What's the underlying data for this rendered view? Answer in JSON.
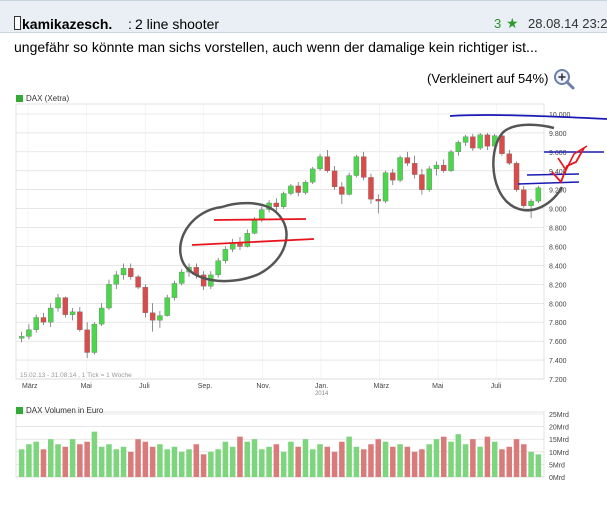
{
  "post": {
    "username": "kamikazesch.",
    "separator": ":",
    "title": "2 line shooter",
    "rating": "3",
    "timestamp": "28.08.14 23:2",
    "body": "ungefähr so könnte man sichs vorstellen, auch wenn der damalige kein richtiger ist...",
    "zoom_label": "(Verkleinert auf 54%)"
  },
  "colors": {
    "up": "#4cd64c",
    "down": "#d94c4c",
    "vol_up": "#7dd67d",
    "vol_down": "#d97b7b",
    "grid": "#d8d8d8",
    "annotation_black": "#555555",
    "annotation_red": "#e8141e",
    "annotation_blue": "#1a1ab4"
  },
  "icons": {
    "zoom": "magnifier-plus-icon",
    "star": "star-icon",
    "user": "user-icon"
  },
  "chart_data": [
    {
      "type": "candlestick",
      "legend": "DAX (Xetra)",
      "info_text": "15.02.13 - 31.08.14 , 1 Tick = 1 Woche",
      "x_tick_labels": [
        "März",
        "Mai",
        "Juli",
        "Sep.",
        "Nov.",
        "Jan.",
        "März",
        "Mai",
        "Juli"
      ],
      "x_tick_sub": [
        "",
        "",
        "",
        "",
        "",
        "2014",
        "",
        "",
        ""
      ],
      "y_tick_labels": [
        "10.000",
        "9.800",
        "9.600",
        "9.400",
        "9.200",
        "9.000",
        "8.800",
        "8.600",
        "8.400",
        "8.200",
        "8.000",
        "7.800",
        "7.600",
        "7.400",
        "7.200"
      ],
      "ylim": [
        7200,
        10000
      ],
      "candles": [
        {
          "o": 7630,
          "h": 7700,
          "l": 7590,
          "c": 7650
        },
        {
          "o": 7650,
          "h": 7780,
          "l": 7620,
          "c": 7720
        },
        {
          "o": 7720,
          "h": 7880,
          "l": 7690,
          "c": 7850
        },
        {
          "o": 7850,
          "h": 7900,
          "l": 7770,
          "c": 7800
        },
        {
          "o": 7800,
          "h": 8000,
          "l": 7750,
          "c": 7950
        },
        {
          "o": 7950,
          "h": 8100,
          "l": 7910,
          "c": 8060
        },
        {
          "o": 8060,
          "h": 8070,
          "l": 7850,
          "c": 7880
        },
        {
          "o": 7880,
          "h": 7950,
          "l": 7820,
          "c": 7910
        },
        {
          "o": 7910,
          "h": 7960,
          "l": 7700,
          "c": 7720
        },
        {
          "o": 7720,
          "h": 7800,
          "l": 7420,
          "c": 7480
        },
        {
          "o": 7480,
          "h": 7800,
          "l": 7460,
          "c": 7780
        },
        {
          "o": 7780,
          "h": 8000,
          "l": 7760,
          "c": 7950
        },
        {
          "o": 7950,
          "h": 8250,
          "l": 7930,
          "c": 8200
        },
        {
          "o": 8200,
          "h": 8340,
          "l": 8150,
          "c": 8300
        },
        {
          "o": 8300,
          "h": 8420,
          "l": 8250,
          "c": 8370
        },
        {
          "o": 8370,
          "h": 8420,
          "l": 8250,
          "c": 8280
        },
        {
          "o": 8280,
          "h": 8300,
          "l": 8150,
          "c": 8170
        },
        {
          "o": 8170,
          "h": 8200,
          "l": 7850,
          "c": 7900
        },
        {
          "o": 7900,
          "h": 8000,
          "l": 7700,
          "c": 7820
        },
        {
          "o": 7820,
          "h": 7920,
          "l": 7740,
          "c": 7870
        },
        {
          "o": 7870,
          "h": 8090,
          "l": 7860,
          "c": 8060
        },
        {
          "o": 8060,
          "h": 8240,
          "l": 8030,
          "c": 8210
        },
        {
          "o": 8210,
          "h": 8360,
          "l": 8190,
          "c": 8330
        },
        {
          "o": 8330,
          "h": 8420,
          "l": 8280,
          "c": 8380
        },
        {
          "o": 8380,
          "h": 8420,
          "l": 8260,
          "c": 8300
        },
        {
          "o": 8300,
          "h": 8340,
          "l": 8140,
          "c": 8180
        },
        {
          "o": 8180,
          "h": 8340,
          "l": 8150,
          "c": 8300
        },
        {
          "o": 8300,
          "h": 8480,
          "l": 8270,
          "c": 8450
        },
        {
          "o": 8450,
          "h": 8600,
          "l": 8420,
          "c": 8570
        },
        {
          "o": 8570,
          "h": 8680,
          "l": 8540,
          "c": 8640
        },
        {
          "o": 8640,
          "h": 8700,
          "l": 8560,
          "c": 8600
        },
        {
          "o": 8600,
          "h": 8780,
          "l": 8590,
          "c": 8740
        },
        {
          "o": 8740,
          "h": 8910,
          "l": 8730,
          "c": 8880
        },
        {
          "o": 8880,
          "h": 9020,
          "l": 8860,
          "c": 8990
        },
        {
          "o": 8990,
          "h": 9090,
          "l": 8960,
          "c": 9060
        },
        {
          "o": 9060,
          "h": 9110,
          "l": 8980,
          "c": 9020
        },
        {
          "o": 9020,
          "h": 9180,
          "l": 9000,
          "c": 9160
        },
        {
          "o": 9160,
          "h": 9260,
          "l": 9140,
          "c": 9240
        },
        {
          "o": 9240,
          "h": 9280,
          "l": 9130,
          "c": 9170
        },
        {
          "o": 9170,
          "h": 9300,
          "l": 9150,
          "c": 9280
        },
        {
          "o": 9280,
          "h": 9440,
          "l": 9260,
          "c": 9420
        },
        {
          "o": 9420,
          "h": 9580,
          "l": 9400,
          "c": 9550
        },
        {
          "o": 9550,
          "h": 9620,
          "l": 9380,
          "c": 9400
        },
        {
          "o": 9400,
          "h": 9450,
          "l": 9200,
          "c": 9230
        },
        {
          "o": 9230,
          "h": 9280,
          "l": 9050,
          "c": 9150
        },
        {
          "o": 9150,
          "h": 9380,
          "l": 9140,
          "c": 9350
        },
        {
          "o": 9350,
          "h": 9570,
          "l": 9330,
          "c": 9550
        },
        {
          "o": 9550,
          "h": 9600,
          "l": 9300,
          "c": 9330
        },
        {
          "o": 9330,
          "h": 9370,
          "l": 9050,
          "c": 9100
        },
        {
          "o": 9100,
          "h": 9150,
          "l": 8950,
          "c": 9080
        },
        {
          "o": 9080,
          "h": 9400,
          "l": 9060,
          "c": 9380
        },
        {
          "o": 9380,
          "h": 9420,
          "l": 9250,
          "c": 9300
        },
        {
          "o": 9300,
          "h": 9560,
          "l": 9280,
          "c": 9540
        },
        {
          "o": 9540,
          "h": 9600,
          "l": 9450,
          "c": 9480
        },
        {
          "o": 9480,
          "h": 9560,
          "l": 9320,
          "c": 9360
        },
        {
          "o": 9360,
          "h": 9420,
          "l": 9150,
          "c": 9200
        },
        {
          "o": 9200,
          "h": 9450,
          "l": 9180,
          "c": 9420
        },
        {
          "o": 9420,
          "h": 9500,
          "l": 9350,
          "c": 9460
        },
        {
          "o": 9460,
          "h": 9520,
          "l": 9380,
          "c": 9400
        },
        {
          "o": 9400,
          "h": 9620,
          "l": 9390,
          "c": 9600
        },
        {
          "o": 9600,
          "h": 9720,
          "l": 9560,
          "c": 9700
        },
        {
          "o": 9700,
          "h": 9780,
          "l": 9660,
          "c": 9760
        },
        {
          "o": 9760,
          "h": 9790,
          "l": 9610,
          "c": 9640
        },
        {
          "o": 9640,
          "h": 9800,
          "l": 9620,
          "c": 9780
        },
        {
          "o": 9780,
          "h": 9800,
          "l": 9620,
          "c": 9660
        },
        {
          "o": 9660,
          "h": 9790,
          "l": 9640,
          "c": 9770
        },
        {
          "o": 9770,
          "h": 9800,
          "l": 9560,
          "c": 9580
        },
        {
          "o": 9580,
          "h": 9620,
          "l": 9460,
          "c": 9480
        },
        {
          "o": 9480,
          "h": 9500,
          "l": 9180,
          "c": 9200
        },
        {
          "o": 9200,
          "h": 9240,
          "l": 9010,
          "c": 9030
        },
        {
          "o": 9030,
          "h": 9100,
          "l": 8900,
          "c": 9080
        },
        {
          "o": 9080,
          "h": 9240,
          "l": 9060,
          "c": 9220
        }
      ],
      "annotations": "hand-drawn circles, red and blue lines"
    },
    {
      "type": "bar",
      "legend": "DAX Volumen in Euro",
      "y_tick_labels": [
        "25Mrd",
        "20Mrd",
        "15Mrd",
        "10Mrd",
        "5Mrd",
        "0Mrd"
      ],
      "ylim": [
        0,
        25
      ],
      "unit": "Mrd",
      "values": [
        11,
        13,
        14,
        11,
        15,
        13,
        12,
        15,
        13,
        14,
        18,
        12,
        13,
        11,
        12,
        10,
        15,
        14,
        12,
        13,
        11,
        12,
        10,
        11,
        13,
        9,
        10,
        11,
        14,
        12,
        16,
        14,
        15,
        11,
        12,
        13,
        10,
        14,
        12,
        15,
        11,
        13,
        12,
        10,
        14,
        16,
        12,
        11,
        13,
        15,
        14,
        12,
        13,
        12,
        10,
        11,
        13,
        15,
        16,
        14,
        17,
        13,
        15,
        12,
        16,
        14,
        11,
        12,
        15,
        13,
        10,
        9
      ]
    }
  ]
}
